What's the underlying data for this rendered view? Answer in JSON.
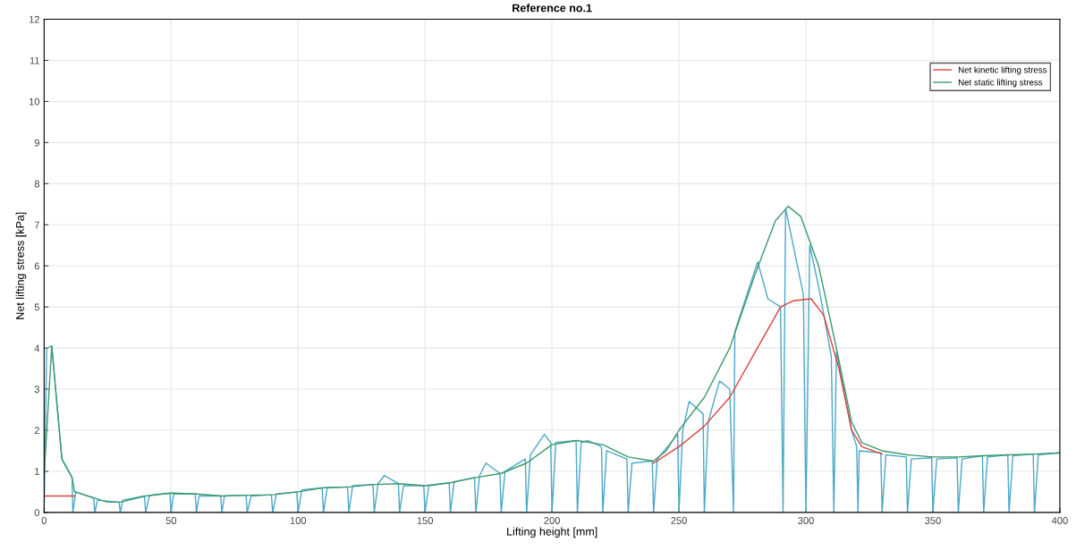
{
  "chart_data": {
    "type": "line",
    "title": "Reference no.1",
    "xlabel": "Lifting height [mm]",
    "ylabel": "Net lifting stress [kPa]",
    "xlim": [
      0,
      400
    ],
    "ylim": [
      0,
      12
    ],
    "xticks": [
      0,
      50,
      100,
      150,
      200,
      250,
      300,
      350,
      400
    ],
    "yticks": [
      0,
      1,
      2,
      3,
      4,
      5,
      6,
      7,
      8,
      9,
      10,
      11,
      12
    ],
    "grid": true,
    "legend": "top right",
    "series": [
      {
        "color": "#4aa8c8",
        "x": [
          0,
          1,
          3,
          7,
          11,
          11.3,
          12.5,
          19.5,
          20,
          21,
          29.5,
          30,
          31,
          39.5,
          40,
          41.5,
          49.5,
          50,
          51,
          59.5,
          60,
          61,
          69.5,
          70,
          71,
          79.5,
          80,
          81.5,
          89.5,
          90,
          91.5,
          99.5,
          100,
          101.5,
          109.5,
          110,
          111.5,
          119.5,
          120,
          121.5,
          129.5,
          130,
          131.5,
          134,
          139.5,
          140,
          141.5,
          149.5,
          150,
          151.5,
          159.5,
          160,
          161.5,
          169.5,
          170,
          171.5,
          174,
          179.5,
          180,
          181.5,
          189.5,
          190,
          191.5,
          197,
          199.5,
          200,
          201.5,
          209.5,
          210,
          211.5,
          214,
          219.5,
          220,
          221.5,
          229.5,
          230,
          231.5,
          239.5,
          240,
          241.5,
          249.5,
          250,
          251.5,
          254,
          259.5,
          260,
          261.5,
          266,
          270,
          271.5,
          272,
          281,
          285,
          290,
          291,
          292,
          299,
          300,
          301.5,
          305,
          310,
          311,
          312,
          318,
          320,
          320.5,
          321,
          329.5,
          330,
          331.5,
          339.5,
          340,
          341.5,
          349.5,
          350,
          351.5,
          359.5,
          360,
          361.5,
          369.5,
          370,
          371.5,
          379.5,
          380,
          381.5,
          389.5,
          390,
          391.5,
          400
        ],
        "values": [
          0,
          4.0,
          4.05,
          1.3,
          0.85,
          0,
          0.5,
          0.35,
          0,
          0.3,
          0.25,
          0,
          0.3,
          0.4,
          0,
          0.42,
          0.47,
          0,
          0.45,
          0.45,
          0,
          0.4,
          0.4,
          0,
          0.4,
          0.42,
          0,
          0.4,
          0.43,
          0,
          0.45,
          0.5,
          0,
          0.55,
          0.6,
          0,
          0.6,
          0.62,
          0,
          0.65,
          0.68,
          0,
          0.7,
          0.9,
          0.7,
          0,
          0.65,
          0.65,
          0,
          0.65,
          0.72,
          0,
          0.75,
          0.85,
          0,
          0.9,
          1.2,
          0.95,
          0,
          1.0,
          1.3,
          0,
          1.4,
          1.9,
          1.7,
          0,
          1.7,
          1.75,
          0,
          1.7,
          1.75,
          1.6,
          0,
          1.5,
          1.3,
          0,
          1.2,
          1.25,
          0,
          1.3,
          1.9,
          0,
          2.0,
          2.7,
          2.4,
          0,
          2.2,
          3.2,
          3.0,
          0,
          4.4,
          6.1,
          5.2,
          5.0,
          0,
          7.4,
          5.3,
          0,
          6.5,
          5.5,
          3.8,
          0,
          3.9,
          2.0,
          1.6,
          0,
          1.5,
          1.45,
          0,
          1.4,
          1.35,
          0,
          1.3,
          1.33,
          0,
          1.3,
          1.33,
          0,
          1.3,
          1.38,
          0,
          1.35,
          1.4,
          0,
          1.38,
          1.42,
          0,
          1.4,
          1.45
        ]
      },
      {
        "name": "Net kinetic lifting stress",
        "color": "#e0403c",
        "x": [
          0,
          12,
          120,
          240,
          250,
          260,
          270,
          280,
          290,
          295,
          302,
          307,
          313,
          318,
          322,
          330
        ],
        "values": [
          0.4,
          0.4,
          null,
          1.2,
          1.6,
          2.1,
          2.8,
          3.9,
          5.0,
          5.15,
          5.2,
          4.8,
          3.5,
          2.0,
          1.6,
          1.42
        ]
      },
      {
        "name": "Net static lifting stress",
        "color": "#3a9a6a",
        "x": [
          0,
          3,
          7,
          11,
          12,
          20,
          25,
          30,
          40,
          50,
          60,
          70,
          80,
          90,
          100,
          110,
          120,
          130,
          140,
          150,
          160,
          170,
          180,
          190,
          200,
          210,
          220,
          230,
          240,
          245,
          250,
          260,
          270,
          280,
          288,
          293,
          298,
          305,
          312,
          318,
          322,
          330,
          340,
          350,
          360,
          370,
          380,
          390,
          400
        ],
        "values": [
          0.9,
          4.05,
          1.3,
          0.85,
          0.5,
          0.35,
          0.25,
          0.25,
          0.4,
          0.47,
          0.45,
          0.4,
          0.42,
          0.43,
          0.5,
          0.6,
          0.62,
          0.68,
          0.7,
          0.65,
          0.72,
          0.85,
          0.95,
          1.2,
          1.65,
          1.75,
          1.65,
          1.35,
          1.25,
          1.5,
          2.0,
          2.8,
          4.0,
          5.8,
          7.1,
          7.45,
          7.2,
          6.0,
          4.0,
          2.2,
          1.7,
          1.5,
          1.4,
          1.35,
          1.35,
          1.38,
          1.4,
          1.42,
          1.45
        ]
      }
    ]
  }
}
